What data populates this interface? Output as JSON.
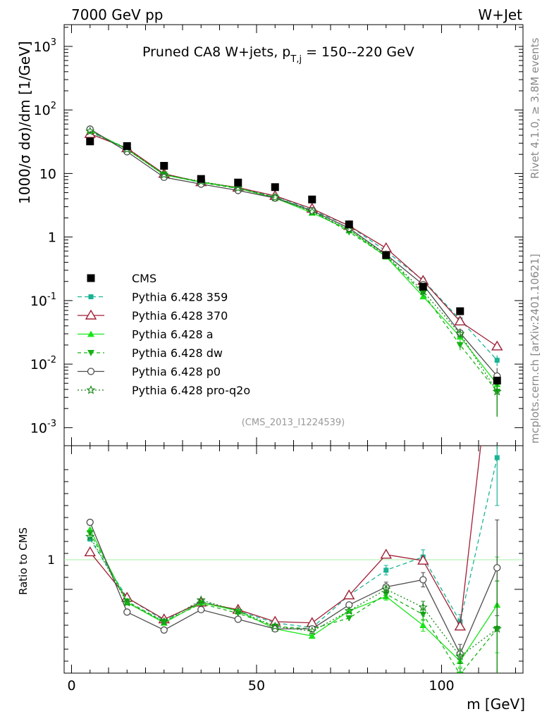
{
  "header": {
    "left": "7000 GeV pp",
    "right": "W+Jet"
  },
  "side": {
    "rivet": "Rivet 4.1.0, ≥ 3.8M events",
    "mcplots": "mcplots.cern.ch [arXiv:2401.10621]"
  },
  "chart_data": {
    "type": "line",
    "title": "Pruned CA8 W+jets, p_{T,j} = 150--220 GeV",
    "title_main": "Pruned CA8 W+jets, p",
    "title_sub": "T,j",
    "title_tail": " = 150--220 GeV",
    "analysis_id": "(CMS_2013_I1224539)",
    "ylabel": "1000/σ  dσ)/dm [1/GeV]",
    "ratio_ylabel": "Ratio to CMS",
    "xlabel": "m [GeV]",
    "x_ticks": [
      "0",
      "50",
      "100"
    ],
    "y_ticks": [
      "10^{3}",
      "10^{2}",
      "10",
      "1",
      "10^{-1}",
      "10^{-2}",
      "10^{-3}"
    ],
    "ratio_tick": "1",
    "xlim": [
      -2,
      122
    ],
    "ylim": [
      0.00052,
      2200
    ],
    "ratio_ylim": [
      0.3,
      2.2
    ],
    "x": [
      5,
      15,
      25,
      35,
      45,
      55,
      65,
      75,
      85,
      95,
      105,
      115
    ],
    "data": {
      "name": "CMS",
      "values": [
        32,
        27,
        13.2,
        8.2,
        7.2,
        6.1,
        3.9,
        1.58,
        0.52,
        0.165,
        0.068,
        0.0055
      ]
    },
    "series": [
      {
        "name": "Pythia 6.428 359",
        "color": "#19b394",
        "dash": "6,4",
        "marker": "square",
        "values": [
          45,
          25,
          9.7,
          7.4,
          5.9,
          4.4,
          2.65,
          1.5,
          0.6,
          0.21,
          0.05,
          0.0115
        ],
        "ratio": [
          1.42,
          0.93,
          0.74,
          0.9,
          0.82,
          0.72,
          0.68,
          0.95,
          1.16,
          1.27,
          0.73,
          2.1
        ],
        "err": [
          0,
          0,
          0,
          0,
          0,
          0,
          0,
          0,
          0.04,
          0.06,
          0.06,
          0.4
        ]
      },
      {
        "name": "Pythia 6.428 370",
        "color": "#a01f35",
        "dash": "",
        "marker": "open-triangle",
        "values": [
          42,
          25,
          9.9,
          7.3,
          6.0,
          4.45,
          2.8,
          1.5,
          0.67,
          0.205,
          0.047,
          0.019
        ],
        "ratio": [
          1.31,
          0.93,
          0.75,
          0.89,
          0.83,
          0.73,
          0.72,
          0.95,
          1.29,
          1.24,
          0.69,
          3.4
        ],
        "err": [
          0,
          0,
          0,
          0,
          0,
          0,
          0,
          0,
          0,
          0,
          0,
          0
        ]
      },
      {
        "name": "Pythia 6.428 a",
        "color": "#19e619",
        "dash": "",
        "marker": "triangle",
        "values": [
          48,
          24,
          9.5,
          7.3,
          5.9,
          4.1,
          2.4,
          1.3,
          0.49,
          0.116,
          0.027,
          0.0048
        ],
        "ratio": [
          1.5,
          0.89,
          0.72,
          0.89,
          0.82,
          0.67,
          0.61,
          0.82,
          0.94,
          0.7,
          0.4,
          0.87
        ],
        "err": [
          0,
          0,
          0,
          0,
          0,
          0,
          0,
          0,
          0.03,
          0.05,
          0.05,
          0.4
        ]
      },
      {
        "name": "Pythia 6.428 dw",
        "color": "#17b317",
        "dash": "5,4",
        "marker": "inv-triangle",
        "values": [
          47,
          24,
          9.7,
          7.2,
          5.8,
          4.2,
          2.6,
          1.2,
          0.5,
          0.13,
          0.02,
          0.0037
        ],
        "ratio": [
          1.47,
          0.9,
          0.73,
          0.88,
          0.8,
          0.69,
          0.67,
          0.76,
          0.96,
          0.79,
          0.29,
          0.67
        ],
        "err": [
          0,
          0,
          0,
          0,
          0,
          0,
          0,
          0,
          0.03,
          0.05,
          0.05,
          0.4
        ]
      },
      {
        "name": "Pythia 6.428 p0",
        "color": "#4d4d4d",
        "dash": "",
        "marker": "open-circle",
        "values": [
          50,
          22,
          8.7,
          6.8,
          5.4,
          4.1,
          2.6,
          1.38,
          0.53,
          0.178,
          0.031,
          0.0065
        ],
        "ratio": [
          1.56,
          0.81,
          0.66,
          0.83,
          0.75,
          0.67,
          0.67,
          0.87,
          1.02,
          1.08,
          0.46,
          1.18
        ],
        "err": [
          0,
          0,
          0,
          0,
          0,
          0,
          0,
          0,
          0.04,
          0.06,
          0.08,
          0.4
        ]
      },
      {
        "name": "Pythia 6.428 pro-q2o",
        "color": "#178817",
        "dash": "2,3",
        "marker": "star",
        "values": [
          46,
          24,
          9.6,
          7.5,
          5.9,
          4.2,
          2.5,
          1.3,
          0.52,
          0.14,
          0.03,
          0.0037
        ],
        "ratio": [
          1.44,
          0.89,
          0.73,
          0.91,
          0.82,
          0.69,
          0.65,
          0.82,
          1.0,
          0.85,
          0.44,
          0.67
        ],
        "err": [
          0,
          0,
          0,
          0,
          0,
          0,
          0,
          0,
          0.03,
          0.05,
          0.06,
          0.4
        ]
      }
    ]
  }
}
